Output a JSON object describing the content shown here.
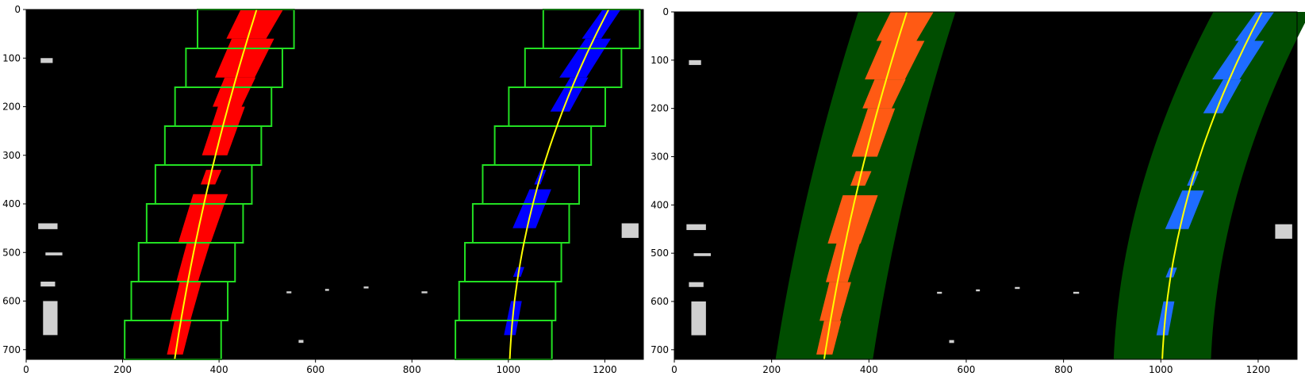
{
  "panels": [
    {
      "id": "sliding-windows",
      "x_ticks": [
        "0",
        "200",
        "400",
        "600",
        "800",
        "1000",
        "1200"
      ],
      "y_ticks": [
        "0",
        "100",
        "200",
        "300",
        "400",
        "500",
        "600",
        "700"
      ]
    },
    {
      "id": "search-margin",
      "x_ticks": [
        "0",
        "200",
        "400",
        "600",
        "800",
        "1000",
        "1200"
      ],
      "y_ticks": [
        "0",
        "100",
        "200",
        "300",
        "400",
        "500",
        "600",
        "700"
      ]
    }
  ],
  "colors": {
    "left_lane_pixels_1": "#ff0000",
    "right_lane_pixels": "#0000ff",
    "left_lane_pixels_2": "#ff5a14",
    "right_lane_pixels_2": "#1e6cff",
    "fit_line": "#ffff00",
    "window_box": "#22e022",
    "search_band": "#004d00",
    "background": "#000000"
  },
  "x_extent": [
    0,
    1280
  ],
  "y_extent": [
    720,
    0
  ]
}
